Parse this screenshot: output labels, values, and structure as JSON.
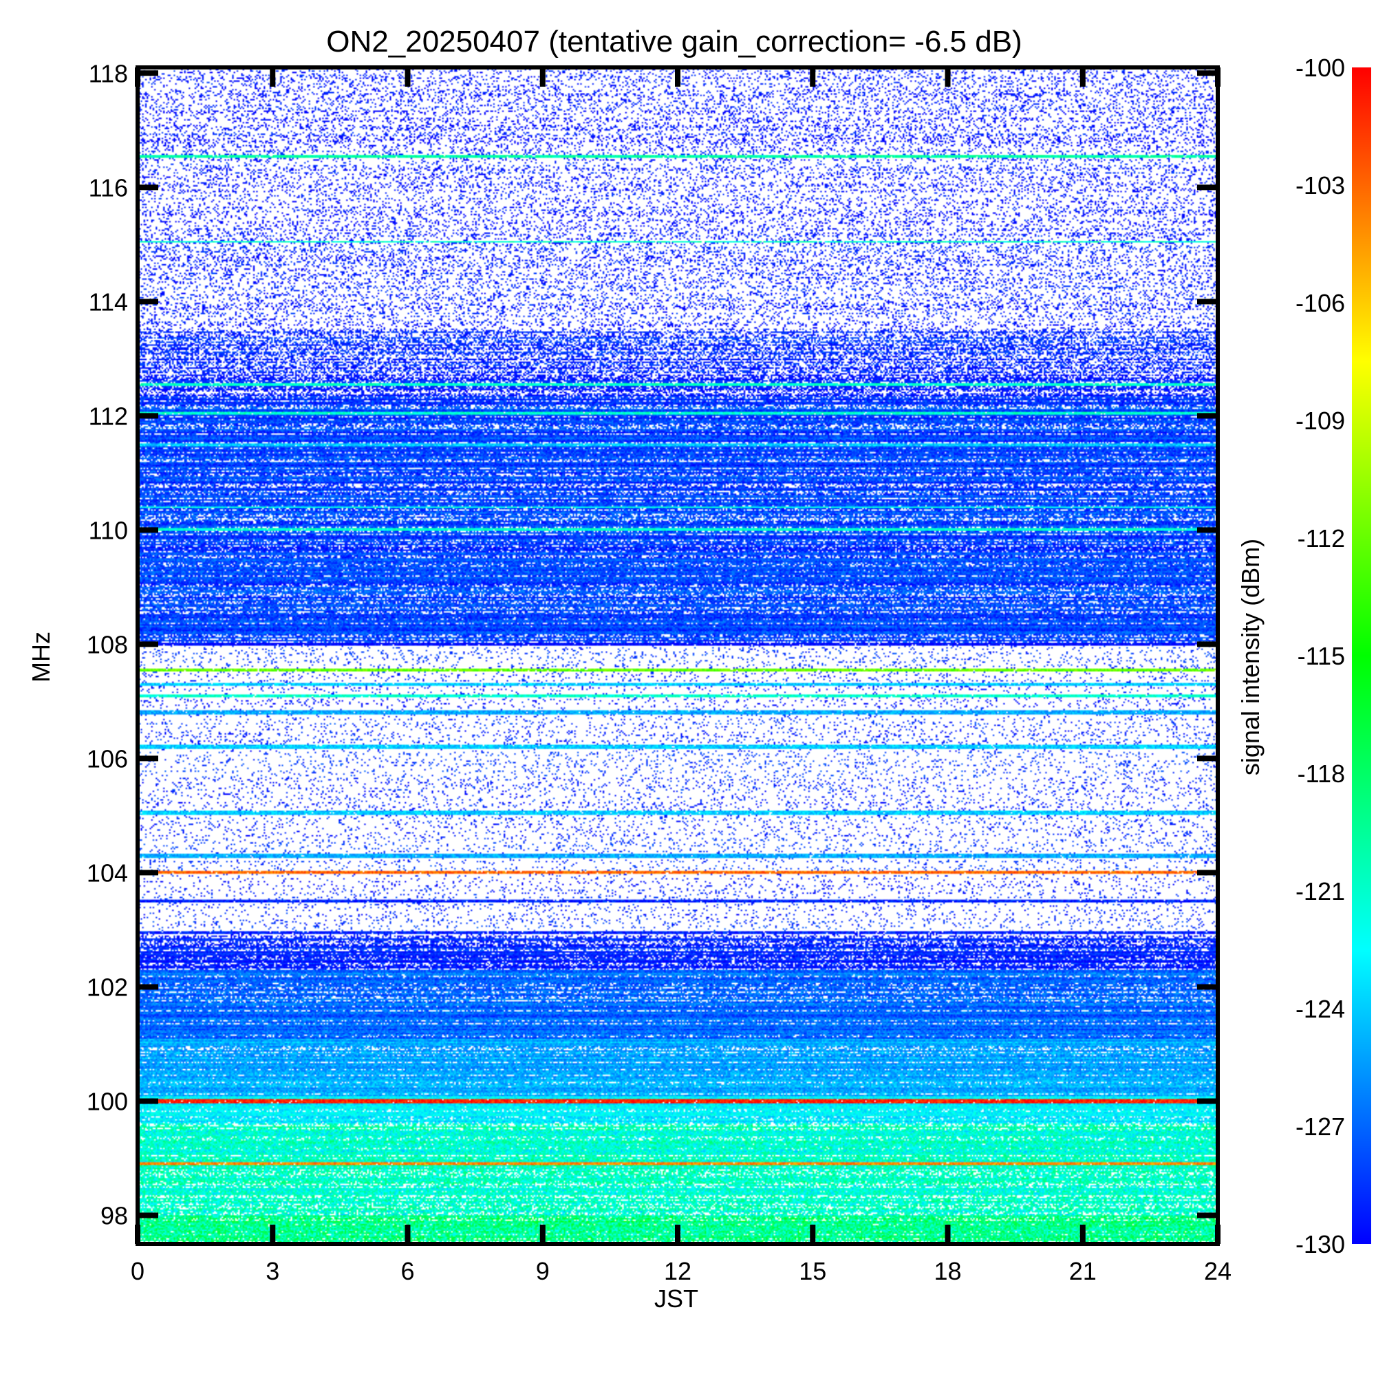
{
  "chart_data": {
    "type": "heatmap",
    "title": "ON2_20250407 (tentative gain_correction= -6.5 dB)",
    "xlabel": "JST",
    "ylabel": "MHz",
    "colorbar_label": "signal intensity (dBm)",
    "xlim": [
      0,
      24
    ],
    "ylim": [
      97.5,
      118.1
    ],
    "x_ticks": [
      "0",
      "3",
      "6",
      "9",
      "12",
      "15",
      "18",
      "21",
      "24"
    ],
    "y_ticks": [
      "98",
      "100",
      "102",
      "104",
      "106",
      "108",
      "110",
      "112",
      "114",
      "116",
      "118"
    ],
    "colorbar_range": [
      -130,
      -100
    ],
    "colorbar_ticks": [
      "-100",
      "-103",
      "-106",
      "-109",
      "-112",
      "-115",
      "-118",
      "-121",
      "-124",
      "-127",
      "-130"
    ],
    "colormap": [
      "#0000ff",
      "#00ffff",
      "#00ff00",
      "#ffff00",
      "#ff0000"
    ],
    "background_color": "#ffffff",
    "bands": [
      {
        "f0": 97.5,
        "f1": 98.0,
        "level": -119,
        "fill": 1.0,
        "noise": 3
      },
      {
        "f0": 98.0,
        "f1": 99.6,
        "level": -121,
        "fill": 1.0,
        "noise": 2.5
      },
      {
        "f0": 99.6,
        "f1": 100.1,
        "level": -123,
        "fill": 1.0,
        "noise": 1.5
      },
      {
        "f0": 100.1,
        "f1": 101.1,
        "level": -125,
        "fill": 1.0,
        "noise": 1.5
      },
      {
        "f0": 101.1,
        "f1": 102.3,
        "level": -127,
        "fill": 1.0,
        "noise": 1.5
      },
      {
        "f0": 102.3,
        "f1": 102.9,
        "level": -129,
        "fill": 0.85,
        "noise": 1
      },
      {
        "f0": 102.9,
        "f1": 108.0,
        "level": -129,
        "fill": 0.1,
        "noise": 1
      },
      {
        "f0": 108.0,
        "f1": 112.3,
        "level": -128,
        "fill": 0.92,
        "noise": 1.5
      },
      {
        "f0": 112.3,
        "f1": 113.5,
        "level": -129,
        "fill": 0.55,
        "noise": 1
      },
      {
        "f0": 113.5,
        "f1": 118.1,
        "level": -129.5,
        "fill": 0.2,
        "noise": 0.8
      }
    ],
    "carriers": [
      {
        "f": 100.0,
        "level": -101,
        "width": 0.06
      },
      {
        "f": 98.9,
        "level": -104,
        "width": 0.05
      },
      {
        "f": 104.0,
        "level": -103,
        "width": 0.04
      },
      {
        "f": 107.55,
        "level": -112,
        "width": 0.06
      },
      {
        "f": 107.3,
        "level": -124,
        "width": 0.06
      },
      {
        "f": 107.1,
        "level": -121,
        "width": 0.06
      },
      {
        "f": 106.8,
        "level": -125,
        "width": 0.08
      },
      {
        "f": 106.2,
        "level": -124,
        "width": 0.08
      },
      {
        "f": 105.05,
        "level": -124,
        "width": 0.06
      },
      {
        "f": 104.3,
        "level": -125,
        "width": 0.06
      },
      {
        "f": 103.5,
        "level": -129,
        "width": 0.05
      },
      {
        "f": 102.95,
        "level": -129,
        "width": 0.06
      },
      {
        "f": 110.0,
        "level": -121,
        "width": 0.05
      },
      {
        "f": 110.4,
        "level": -122,
        "width": 0.04
      },
      {
        "f": 111.5,
        "level": -124,
        "width": 0.04
      },
      {
        "f": 112.05,
        "level": -121,
        "width": 0.05
      },
      {
        "f": 112.55,
        "level": -121,
        "width": 0.05
      },
      {
        "f": 115.05,
        "level": -121,
        "width": 0.04
      },
      {
        "f": 116.55,
        "level": -120,
        "width": 0.05
      },
      {
        "f": 108.0,
        "level": -130,
        "width": 0.05
      }
    ]
  }
}
